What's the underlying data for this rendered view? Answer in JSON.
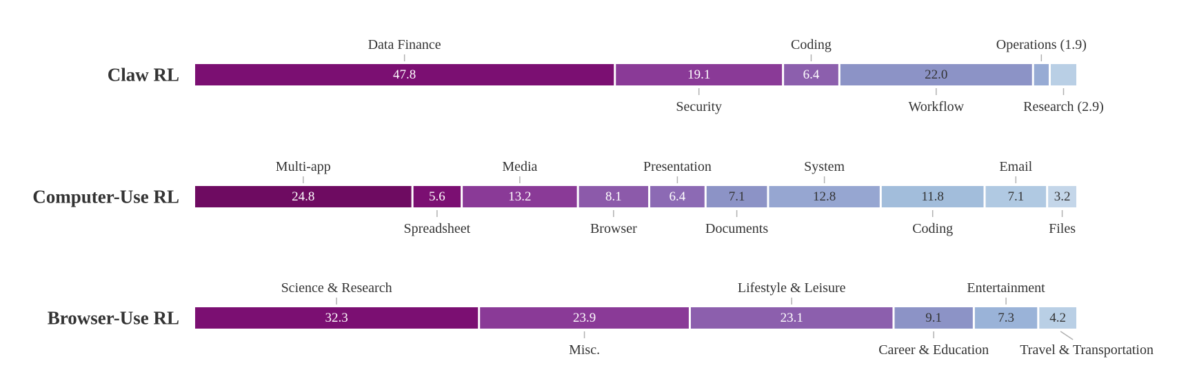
{
  "chart_data": {
    "type": "bar",
    "orientation": "horizontal",
    "stacked": true,
    "unit": "percent",
    "grid": false,
    "rows": [
      {
        "label": "Claw RL",
        "segments": [
          {
            "category": "Data Finance",
            "value": 47.8,
            "value_label": "47.8",
            "color": "#7b0f72",
            "label_pos": "top"
          },
          {
            "category": "Security",
            "value": 19.1,
            "value_label": "19.1",
            "color": "#8a3a97",
            "label_pos": "bottom"
          },
          {
            "category": "Coding",
            "value": 6.4,
            "value_label": "6.4",
            "color": "#8c5fad",
            "label_pos": "top"
          },
          {
            "category": "Workflow",
            "value": 22.0,
            "value_label": "22.0",
            "color": "#8c93c6",
            "label_pos": "bottom"
          },
          {
            "category": "Operations (1.9)",
            "value": 1.9,
            "value_label": "",
            "color": "#97abd4",
            "label_pos": "top"
          },
          {
            "category": "Research (2.9)",
            "value": 2.9,
            "value_label": "",
            "color": "#b9cfe5",
            "label_pos": "bottom"
          }
        ]
      },
      {
        "label": "Computer-Use RL",
        "segments": [
          {
            "category": "Multi-app",
            "value": 24.8,
            "value_label": "24.8",
            "color": "#6e0b61",
            "label_pos": "top"
          },
          {
            "category": "Spreadsheet",
            "value": 5.6,
            "value_label": "5.6",
            "color": "#7b0f72",
            "label_pos": "bottom"
          },
          {
            "category": "Media",
            "value": 13.2,
            "value_label": "13.2",
            "color": "#8a3a97",
            "label_pos": "top"
          },
          {
            "category": "Browser",
            "value": 8.1,
            "value_label": "8.1",
            "color": "#8c5aaa",
            "label_pos": "bottom"
          },
          {
            "category": "Presentation",
            "value": 6.4,
            "value_label": "6.4",
            "color": "#8c6ab4",
            "label_pos": "top"
          },
          {
            "category": "Documents",
            "value": 7.1,
            "value_label": "7.1",
            "color": "#8c93c6",
            "label_pos": "bottom"
          },
          {
            "category": "System",
            "value": 12.8,
            "value_label": "12.8",
            "color": "#96a6d1",
            "label_pos": "top"
          },
          {
            "category": "Coding",
            "value": 11.8,
            "value_label": "11.8",
            "color": "#a2bddb",
            "label_pos": "bottom"
          },
          {
            "category": "Email",
            "value": 7.1,
            "value_label": "7.1",
            "color": "#b0c9e2",
            "label_pos": "top"
          },
          {
            "category": "Files",
            "value": 3.2,
            "value_label": "3.2",
            "color": "#c4d6e9",
            "label_pos": "bottom"
          }
        ]
      },
      {
        "label": "Browser-Use RL",
        "segments": [
          {
            "category": "Science & Research",
            "value": 32.3,
            "value_label": "32.3",
            "color": "#7b0f72",
            "label_pos": "top"
          },
          {
            "category": "Misc.",
            "value": 23.9,
            "value_label": "23.9",
            "color": "#8a3a97",
            "label_pos": "bottom"
          },
          {
            "category": "Lifestyle & Leisure",
            "value": 23.1,
            "value_label": "23.1",
            "color": "#8c5fad",
            "label_pos": "top"
          },
          {
            "category": "Career & Education",
            "value": 9.1,
            "value_label": "9.1",
            "color": "#8c93c6",
            "label_pos": "bottom"
          },
          {
            "category": "Entertainment",
            "value": 7.3,
            "value_label": "7.3",
            "color": "#9ab3d8",
            "label_pos": "top"
          },
          {
            "category": "Travel & Transportation",
            "value": 4.2,
            "value_label": "4.2",
            "color": "#b9cfe5",
            "label_pos": "bottom-right"
          }
        ]
      }
    ]
  }
}
